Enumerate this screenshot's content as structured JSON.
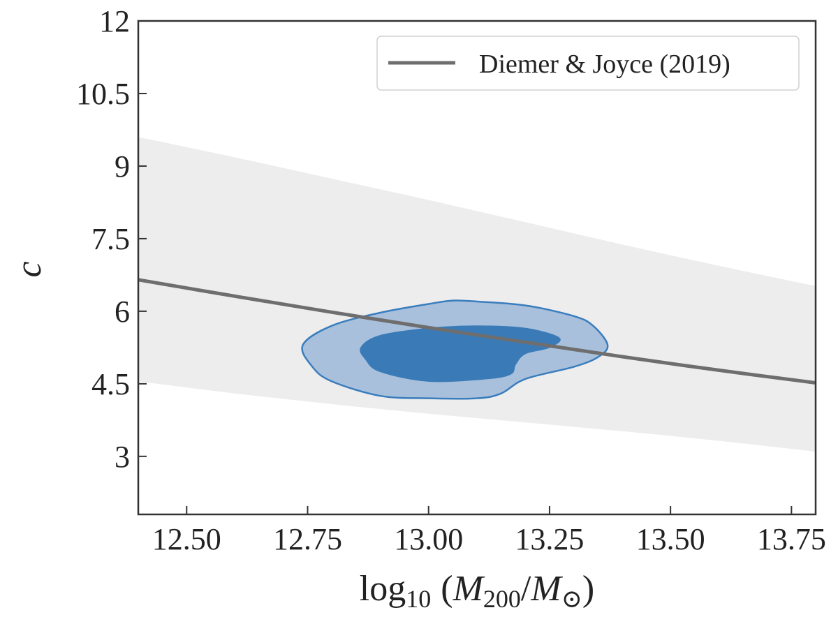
{
  "chart_data": {
    "type": "line",
    "xlabel": "log10 (M200/M⊙)",
    "xlabel_parts": {
      "prefix": "log",
      "prefix_sub": "10",
      "open": "(",
      "mass": "M",
      "mass_sub": "200",
      "slash": "/",
      "sun": "M",
      "sun_sub": "⊙",
      "close": ")"
    },
    "ylabel": "c",
    "xlim": [
      12.4,
      13.8
    ],
    "ylim": [
      1.8,
      12
    ],
    "x_ticks": [
      12.5,
      12.75,
      13.0,
      13.25,
      13.5,
      13.75
    ],
    "x_tick_labels": [
      "12.50",
      "12.75",
      "13.00",
      "13.25",
      "13.50",
      "13.75"
    ],
    "y_ticks": [
      3,
      4.5,
      6,
      7.5,
      9,
      10.5,
      12
    ],
    "y_tick_labels": [
      "3",
      "4.5",
      "6",
      "7.5",
      "9",
      "10.5",
      "12"
    ],
    "grid": false,
    "legend": {
      "position": "top-right",
      "entries": [
        "Diemer & Joyce (2019)"
      ]
    },
    "series": [
      {
        "name": "Diemer & Joyce (2019)",
        "color": "#6e6e6e",
        "x": [
          12.4,
          12.6,
          12.8,
          13.0,
          13.2,
          13.4,
          13.6,
          13.8
        ],
        "values": [
          6.65,
          6.31,
          5.98,
          5.66,
          5.36,
          5.06,
          4.78,
          4.52
        ]
      }
    ],
    "scatter_band": {
      "color": "#ededed",
      "x": [
        12.4,
        12.6,
        12.8,
        13.0,
        13.2,
        13.4,
        13.6,
        13.8
      ],
      "upper": [
        9.6,
        9.18,
        8.74,
        8.3,
        7.84,
        7.38,
        6.94,
        6.52
      ],
      "lower": [
        4.55,
        4.3,
        4.08,
        3.88,
        3.7,
        3.52,
        3.32,
        3.1
      ]
    },
    "posterior_contours": [
      {
        "level": "outer",
        "fill": "#a8c0dc",
        "stroke": "#3a7dbd",
        "x": [
          12.74,
          12.8,
          12.9,
          13.0,
          13.05,
          13.1,
          13.2,
          13.3,
          13.34,
          13.37,
          13.35,
          13.3,
          13.2,
          13.15,
          13.1,
          13.0,
          12.9,
          12.8,
          12.76
        ],
        "y": [
          5.3,
          5.7,
          5.97,
          6.15,
          6.22,
          6.2,
          6.12,
          5.9,
          5.7,
          5.3,
          5.05,
          4.85,
          4.6,
          4.3,
          4.2,
          4.2,
          4.25,
          4.55,
          4.85
        ]
      },
      {
        "level": "inner",
        "fill": "#3a7bb7",
        "stroke": "#3a7bb7",
        "x": [
          12.86,
          12.9,
          13.0,
          13.1,
          13.2,
          13.27,
          13.25,
          13.2,
          13.18,
          13.17,
          13.12,
          13.0,
          12.9,
          12.87
        ],
        "y": [
          5.25,
          5.5,
          5.65,
          5.7,
          5.65,
          5.45,
          5.25,
          5.12,
          4.9,
          4.7,
          4.6,
          4.55,
          4.75,
          5.0
        ]
      }
    ]
  }
}
